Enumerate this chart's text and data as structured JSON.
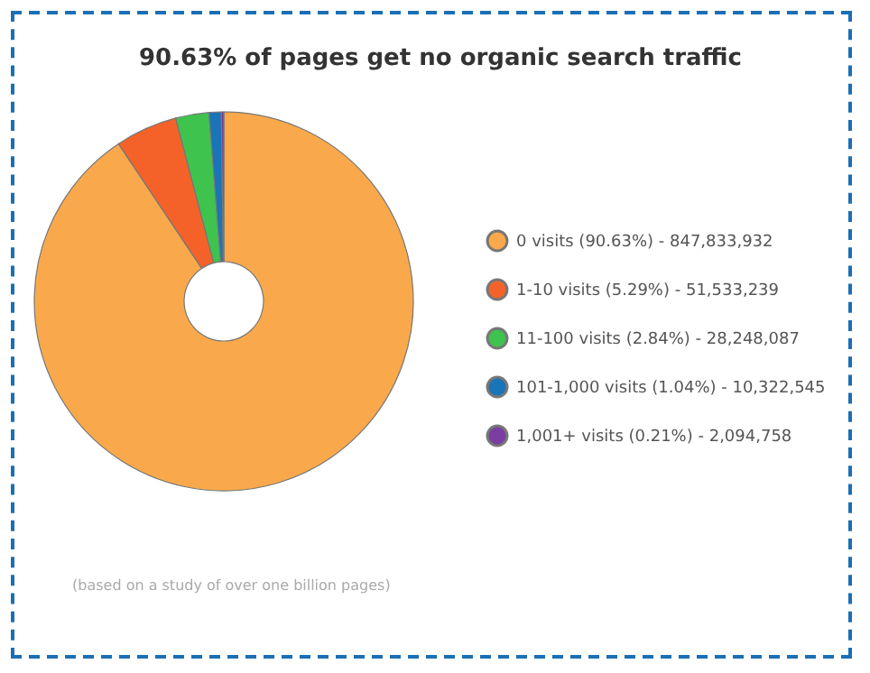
{
  "chart_data": {
    "type": "donut",
    "title": "90.63% of pages get no organic search traffic",
    "categories": [
      "0 visits (90.63%) - 847,833,932",
      "1-10 visits (5.29%) - 51,533,239",
      "11-100 visits (2.84%) - 28,248,087",
      "101-1,000 visits (1.04%) - 10,322,545",
      "1,001+ visits (0.21%) - 2,094,758"
    ],
    "values": [
      90.63,
      5.29,
      2.84,
      1.04,
      0.21
    ],
    "colors": [
      "#f9a94b",
      "#f4622a",
      "#3ec34e",
      "#1a74b8",
      "#7a3ea0"
    ],
    "legend": "right",
    "annotations": [
      "(based on a study of over one billion pages)"
    ]
  }
}
